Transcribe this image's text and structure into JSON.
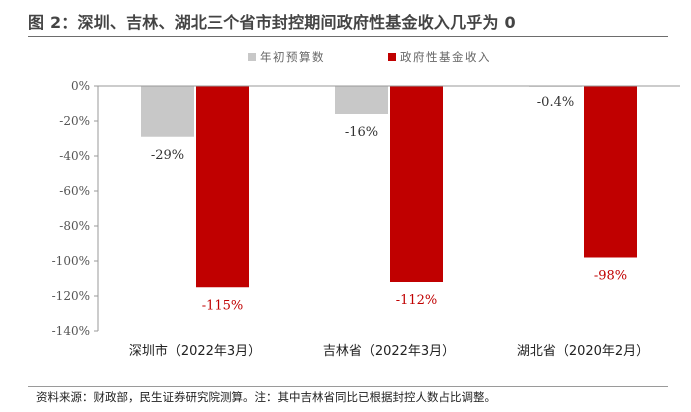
{
  "header": {
    "title": "图 2：深圳、吉林、湖北三个省市封控期间政府性基金收入几乎为 0"
  },
  "footer": {
    "source": "资料来源：财政部，民生证券研究院测算。注：其中吉林省同比已根据封控人数占比调整。"
  },
  "chart_data": {
    "type": "bar",
    "categories": [
      "深圳市（2022年3月）",
      "吉林省（2022年3月）",
      "湖北省（2020年2月）"
    ],
    "series": [
      {
        "name": "年初预算数",
        "color": "#c8c8c8",
        "values": [
          -29,
          -16,
          -0.4
        ],
        "labels": [
          "-29%",
          "-16%",
          "-0.4%"
        ],
        "label_color": "#333333"
      },
      {
        "name": "政府性基金收入",
        "color": "#c00000",
        "values": [
          -115,
          -112,
          -98
        ],
        "labels": [
          "-115%",
          "-112%",
          "-98%"
        ],
        "label_color": "#c00000"
      }
    ],
    "ylim": [
      -140,
      0
    ],
    "yticks": [
      "0%",
      "-20%",
      "-40%",
      "-60%",
      "-80%",
      "-100%",
      "-120%",
      "-140%"
    ],
    "legend_position": "top",
    "grid": false,
    "xlabel": "",
    "ylabel": ""
  }
}
